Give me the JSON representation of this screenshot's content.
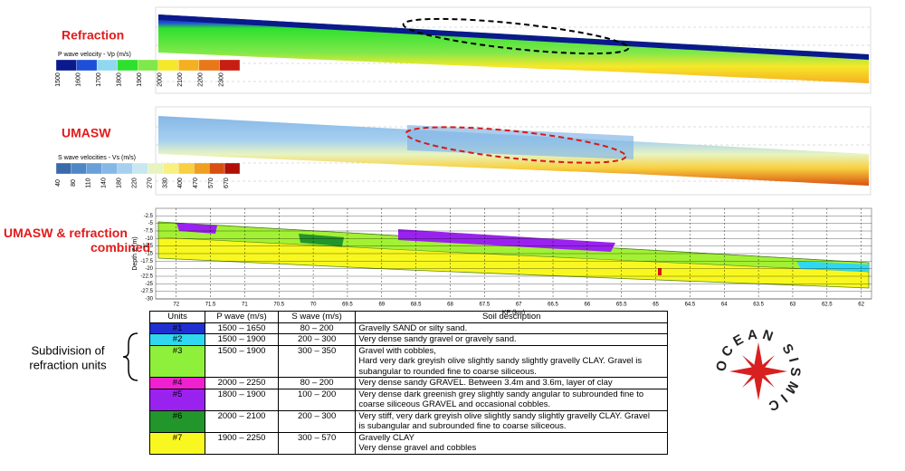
{
  "sections": [
    {
      "label": "Refraction"
    },
    {
      "label": "UMASW"
    },
    {
      "label": "UMASW & refraction combined"
    }
  ],
  "vp_colorbar": {
    "title": "P wave velocity - Vp (m/s)",
    "ticks": [
      1500,
      1600,
      1700,
      1800,
      1900,
      2000,
      2100,
      2200,
      2300
    ],
    "colors": [
      "#0a1a8c",
      "#1e4fd8",
      "#8fd8f0",
      "#2ee02e",
      "#7fe84a",
      "#f5e82a",
      "#f5b020",
      "#e8781a",
      "#c81e12"
    ]
  },
  "vs_colorbar": {
    "title": "S wave velocities - Vs (m/s)",
    "ticks": [
      40,
      80,
      110,
      140,
      180,
      220,
      270,
      330,
      400,
      470,
      570,
      670
    ],
    "colors": [
      "#3a6aa8",
      "#4f86c6",
      "#6aa0d8",
      "#86b8e6",
      "#a6d0f0",
      "#c8e8f0",
      "#e8f4c0",
      "#f8f080",
      "#f8d040",
      "#f0a020",
      "#d85010",
      "#b01008"
    ]
  },
  "combined": {
    "ylabel": "Depth Z (m)",
    "xlabel": "KP (km)",
    "xlim": [
      72.3,
      61.85
    ],
    "xticks": [
      72,
      71.5,
      71,
      70.5,
      70,
      69.5,
      69,
      68.5,
      68,
      67.5,
      67,
      66.5,
      66,
      65.5,
      65,
      64.5,
      64,
      63.5,
      63,
      62.5,
      62
    ],
    "ylim": [
      0,
      -30
    ],
    "yticks": [
      -2.5,
      -5,
      -7.5,
      -10,
      -12.5,
      -15,
      -17.5,
      -20,
      -22.5,
      -25,
      -27.5,
      -30
    ]
  },
  "annotation": {
    "lines": [
      "Subdivision of",
      "refraction units"
    ]
  },
  "logo": {
    "text": "OCEAN SISMIC"
  },
  "table": {
    "header": [
      "Units",
      "P wave (m/s)",
      "S wave (m/s)",
      "Soil description"
    ],
    "rows": [
      {
        "unit": "#1",
        "color": "#1f2fd0",
        "p": "1500 – 1650",
        "s": "80 – 200",
        "desc": [
          "Gravelly SAND or silty sand."
        ]
      },
      {
        "unit": "#2",
        "color": "#2fd8f0",
        "p": "1500 – 1900",
        "s": "200 – 300",
        "desc": [
          "Very dense sandy gravel or gravely sand."
        ]
      },
      {
        "unit": "#3",
        "color": "#8ef03a",
        "p": "1500 – 1900",
        "s": "300 – 350",
        "desc": [
          "Gravel with cobbles,",
          "Hard very dark greyish olive slightly sandy slightly gravelly CLAY. Gravel is",
          "subangular to rounded fine to coarse siliceous."
        ]
      },
      {
        "unit": "#4",
        "color": "#f020d0",
        "p": "2000 – 2250",
        "s": "80 – 200",
        "desc": [
          "Very dense sandy GRAVEL. Between 3.4m and 3.6m, layer of clay"
        ]
      },
      {
        "unit": "#5",
        "color": "#9a22ee",
        "p": "1800 – 1900",
        "s": "100 – 200",
        "desc": [
          "Very dense dark greenish grey slightly sandy angular to subrounded fine to",
          "coarse siliceous GRAVEL and occasional cobbles."
        ]
      },
      {
        "unit": "#6",
        "color": "#22962a",
        "p": "2000 – 2100",
        "s": "200 – 300",
        "desc": [
          "Very stiff, very dark greyish olive slightly sandy slightly gravelly CLAY. Gravel",
          "is subangular and subrounded fine to coarse siliceous."
        ]
      },
      {
        "unit": "#7",
        "color": "#f8f820",
        "p": "1900 – 2250",
        "s": "300 – 570",
        "desc": [
          "Gravelly CLAY",
          "Very dense gravel and cobbles"
        ]
      }
    ]
  }
}
